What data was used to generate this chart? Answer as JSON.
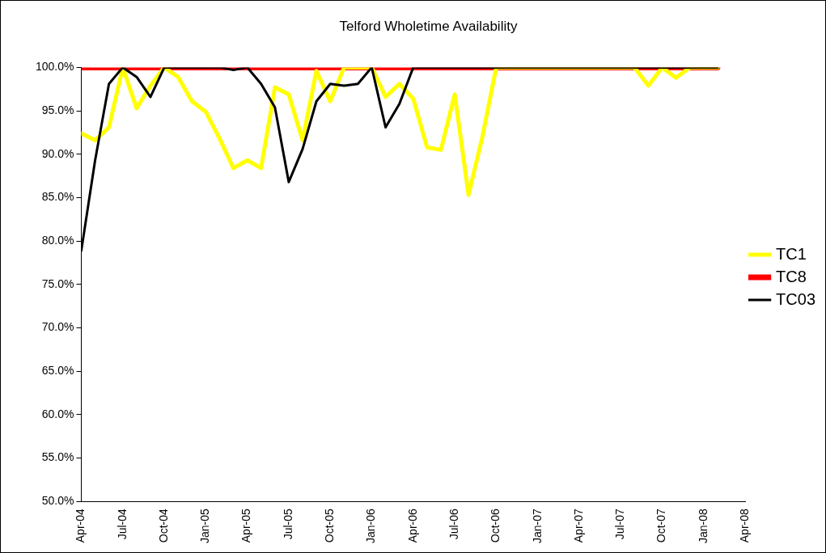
{
  "chart_data": {
    "type": "line",
    "title": "Telford Wholetime Availability",
    "x": [
      "2004-04",
      "2004-05",
      "2004-06",
      "2004-07",
      "2004-08",
      "2004-09",
      "2004-10",
      "2004-11",
      "2004-12",
      "2005-01",
      "2005-02",
      "2005-03",
      "2005-04",
      "2005-05",
      "2005-06",
      "2005-07",
      "2005-08",
      "2005-09",
      "2005-10",
      "2005-11",
      "2005-12",
      "2006-01",
      "2006-02",
      "2006-03",
      "2006-04",
      "2006-05",
      "2006-06",
      "2006-07",
      "2006-08",
      "2006-09",
      "2006-10",
      "2006-11",
      "2006-12",
      "2007-01",
      "2007-02",
      "2007-03",
      "2007-04",
      "2007-05",
      "2007-06",
      "2007-07",
      "2007-08",
      "2007-09",
      "2007-10",
      "2007-11",
      "2007-12",
      "2008-01",
      "2008-02"
    ],
    "series": [
      {
        "name": "TC1",
        "color": "#ffff00",
        "values": [
          92.4,
          91.6,
          93.1,
          100,
          95.3,
          97.9,
          100,
          98.9,
          96.1,
          94.9,
          91.8,
          88.4,
          89.3,
          88.4,
          97.7,
          96.9,
          91.6,
          99.6,
          96.1,
          100,
          100,
          100,
          96.6,
          98.1,
          96.4,
          90.8,
          90.5,
          96.9,
          85.3,
          92.0,
          100,
          100,
          100,
          100,
          100,
          100,
          100,
          100,
          100,
          100,
          100,
          97.9,
          100,
          98.8,
          100,
          100,
          100
        ]
      },
      {
        "name": "TC8",
        "color": "#ff0000",
        "values": [
          100,
          100,
          100,
          100,
          100,
          100,
          100,
          100,
          100,
          100,
          100,
          100,
          100,
          100,
          100,
          100,
          100,
          100,
          100,
          100,
          100,
          100,
          100,
          100,
          100,
          100,
          100,
          100,
          100,
          100,
          100,
          100,
          100,
          100,
          100,
          100,
          100,
          100,
          100,
          100,
          100,
          100,
          100,
          100,
          100,
          100,
          100
        ]
      },
      {
        "name": "TC03",
        "color": "#000000",
        "values": [
          78.9,
          89.3,
          98.1,
          100,
          98.9,
          96.6,
          100,
          100,
          100,
          100,
          100,
          99.7,
          100,
          98.1,
          95.4,
          86.8,
          90.6,
          96.1,
          98.1,
          97.9,
          98.1,
          100,
          93.1,
          95.8,
          100,
          100,
          100,
          100,
          100,
          100,
          100,
          100,
          100,
          100,
          100,
          100,
          100,
          100,
          100,
          100,
          100,
          100,
          100,
          100,
          100,
          100,
          100
        ]
      }
    ],
    "xlim": [
      "2004-04",
      "2008-04"
    ],
    "xticks": [
      {
        "value": "2004-04",
        "label": "Apr-04"
      },
      {
        "value": "2004-07",
        "label": "Jul-04"
      },
      {
        "value": "2004-10",
        "label": "Oct-04"
      },
      {
        "value": "2005-01",
        "label": "Jan-05"
      },
      {
        "value": "2005-04",
        "label": "Apr-05"
      },
      {
        "value": "2005-07",
        "label": "Jul-05"
      },
      {
        "value": "2005-10",
        "label": "Oct-05"
      },
      {
        "value": "2006-01",
        "label": "Jan-06"
      },
      {
        "value": "2006-04",
        "label": "Apr-06"
      },
      {
        "value": "2006-07",
        "label": "Jul-06"
      },
      {
        "value": "2006-10",
        "label": "Oct-06"
      },
      {
        "value": "2007-01",
        "label": "Jan-07"
      },
      {
        "value": "2007-04",
        "label": "Apr-07"
      },
      {
        "value": "2007-07",
        "label": "Jul-07"
      },
      {
        "value": "2007-10",
        "label": "Oct-07"
      },
      {
        "value": "2008-01",
        "label": "Jan-08"
      },
      {
        "value": "2008-04",
        "label": "Apr-08"
      }
    ],
    "ylim": [
      50,
      100
    ],
    "yticks": [
      {
        "value": 50,
        "label": "50.0%"
      },
      {
        "value": 55,
        "label": "55.0%"
      },
      {
        "value": 60,
        "label": "60.0%"
      },
      {
        "value": 65,
        "label": "65.0%"
      },
      {
        "value": 70,
        "label": "70.0%"
      },
      {
        "value": 75,
        "label": "75.0%"
      },
      {
        "value": 80,
        "label": "80.0%"
      },
      {
        "value": 85,
        "label": "85.0%"
      },
      {
        "value": 90,
        "label": "90.0%"
      },
      {
        "value": 95,
        "label": "95.0%"
      },
      {
        "value": 100,
        "label": "100.0%"
      }
    ],
    "grid": false,
    "legend": "right",
    "marker": "none",
    "line_style": "solid"
  }
}
